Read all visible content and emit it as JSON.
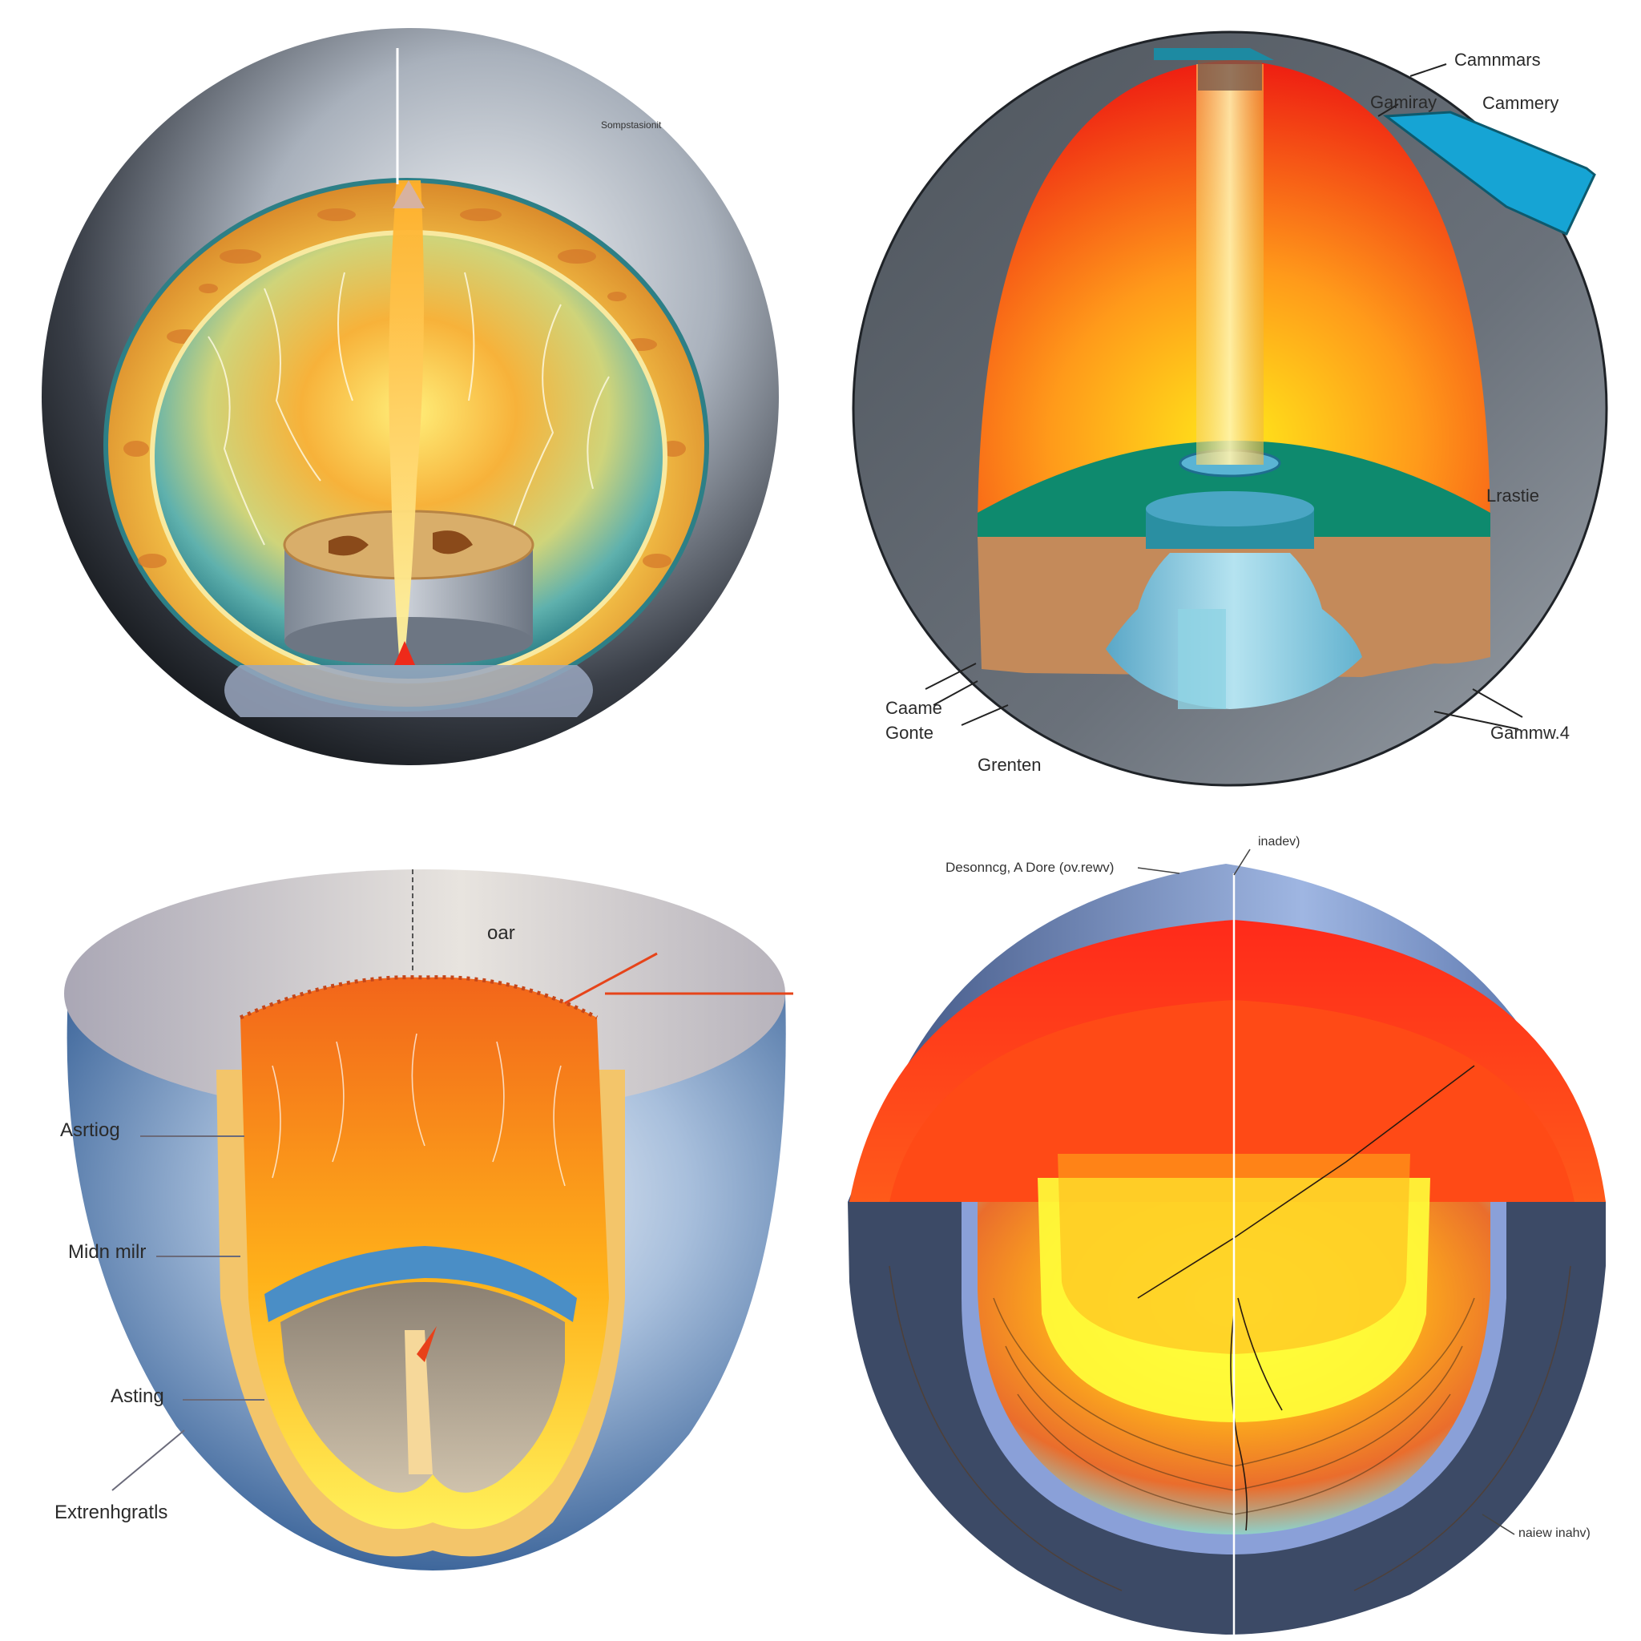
{
  "panels": {
    "top_left": {
      "labels": {
        "corner": "Sompstasionit"
      }
    },
    "top_right": {
      "labels": {
        "camnmars": "Camnmars",
        "gamiray": "Gamiray",
        "cammery": "Cammery",
        "lrastie": "Lrastie",
        "caame": "Caame",
        "gonte": "Gonte",
        "grenten": "Grenten",
        "gammw": "Gammw.4"
      }
    },
    "bottom_left": {
      "labels": {
        "oar": "oar",
        "asrtiog": "Asrtiog",
        "midn_milr": "Midn milr",
        "asting": "Asting",
        "extrenhgratls": "Extrenhgratls"
      }
    },
    "bottom_right": {
      "labels": {
        "inadev": "inadev)",
        "desonncg": "Desonncg, A Dore (ov.rewv)",
        "naiew": "naiew inahv)"
      }
    }
  },
  "colors": {
    "hot_red": "#ff3a1a",
    "orange": "#ff8a1a",
    "yellow": "#ffe21a",
    "teal": "#0e8a6e",
    "slate": "#5f6670",
    "navy": "#3c4a66",
    "steel_blue": "#2f5a92"
  }
}
